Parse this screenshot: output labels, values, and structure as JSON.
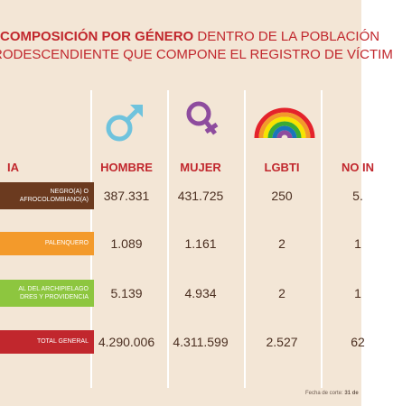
{
  "header": {
    "title_bold": "COMPOSICIÓN POR GÉNERO",
    "title_rest": " DENTRO DE LA POBLACIÓN",
    "title_line2": "RODESCENDIENTE QUE COMPONE EL REGISTRO DE VÍCTIM"
  },
  "table": {
    "columns": [
      "IA",
      "HOMBRE",
      "MUJER",
      "LGBTI",
      "NO IN"
    ],
    "rows": [
      [
        "NEGRO(A) O AFROCOLOMBIANO(A)",
        "387.331",
        "431.725",
        "250",
        "5."
      ],
      [
        "PALENQUERO",
        "1.089",
        "1.161",
        "2",
        "1"
      ],
      [
        "AL DEL ARCHIPIELAGO DRES Y PROVIDENCIA",
        "5.139",
        "4.934",
        "2",
        "1"
      ],
      [
        "TOTAL GENERAL",
        "4.290.006",
        "4.311.599",
        "2.527",
        "62"
      ]
    ]
  },
  "footer": {
    "label": "Fecha de corte: ",
    "date": "31 de"
  }
}
